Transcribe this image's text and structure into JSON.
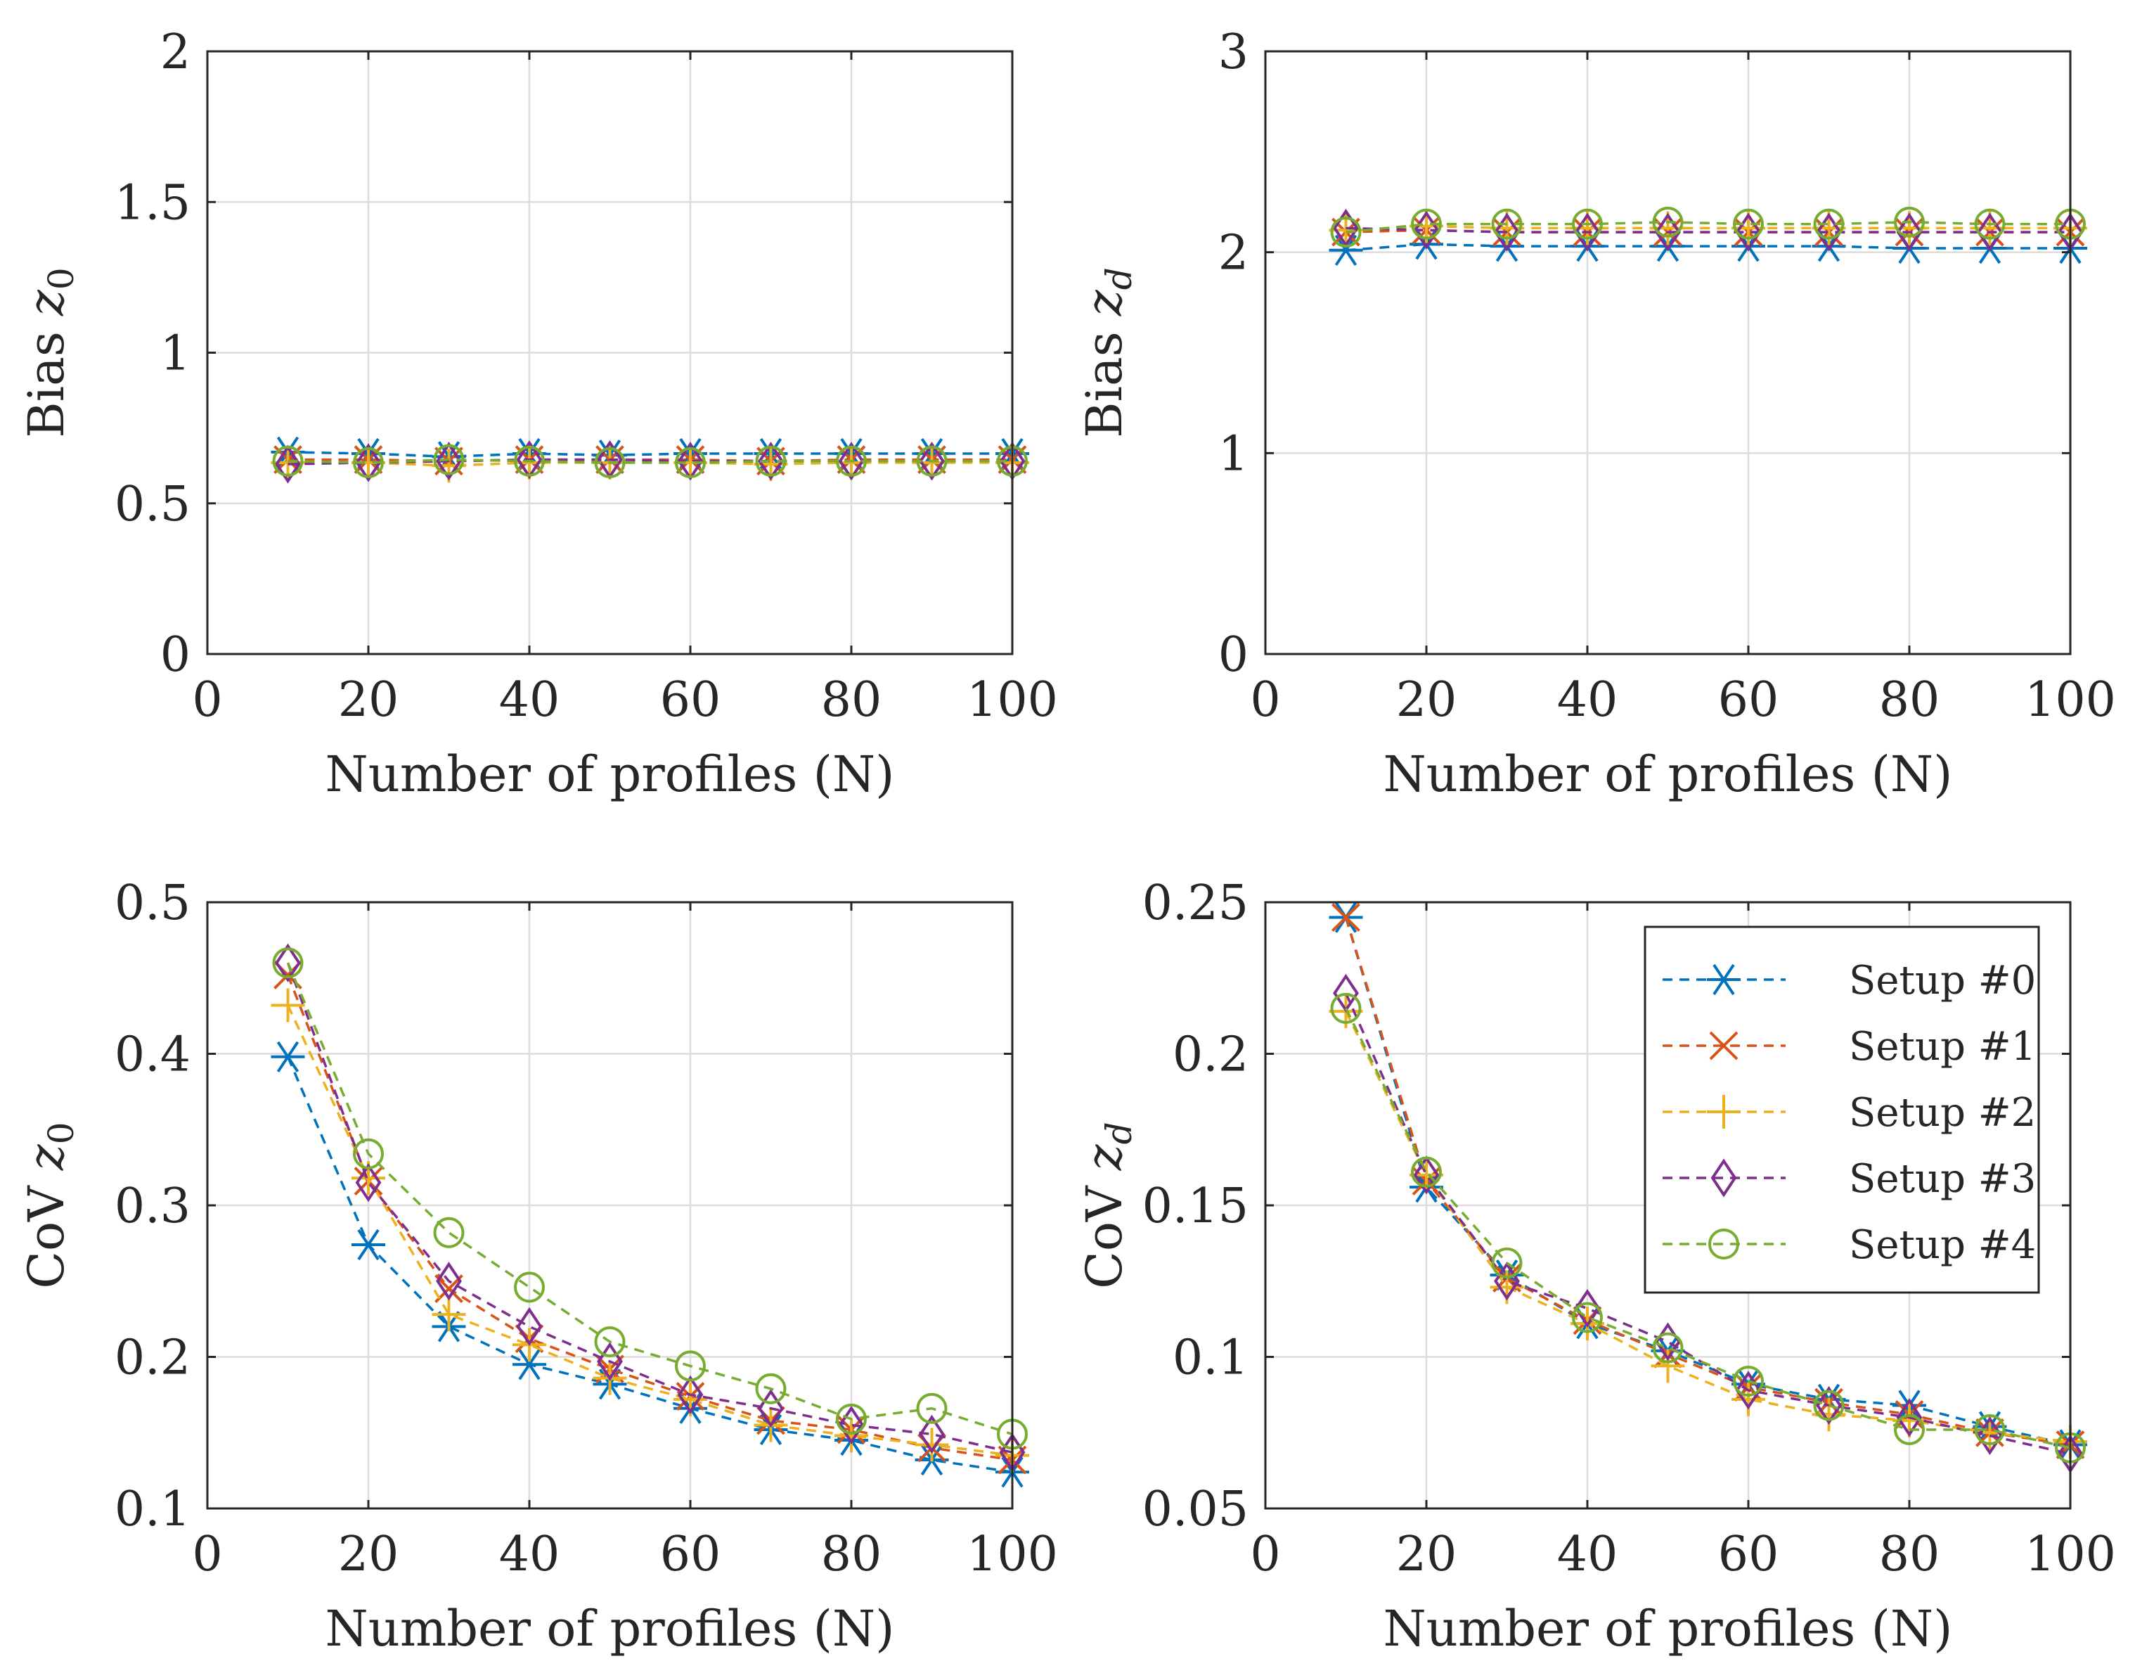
{
  "colors": {
    "series": [
      "#0072BD",
      "#D95319",
      "#EDB120",
      "#7E2F8E",
      "#77AC30"
    ],
    "grid": "#dcdcdc",
    "axis": "#262626"
  },
  "legend": {
    "entries": [
      "Setup #0",
      "Setup #1",
      "Setup #2",
      "Setup #3",
      "Setup #4"
    ],
    "markers": [
      "asterisk",
      "x",
      "plus",
      "diamond",
      "circle"
    ]
  },
  "chart_data": [
    {
      "id": "bias-z0",
      "type": "line",
      "xlabel": "Number of profiles (N)",
      "ylabel_main": "Bias ",
      "ylabel_var": "z",
      "ylabel_sub": "0",
      "xlim": [
        0,
        100
      ],
      "ylim": [
        0,
        2
      ],
      "xticks": [
        "0",
        "20",
        "40",
        "60",
        "80",
        "100"
      ],
      "yticks": [
        "0",
        "0.5",
        "1",
        "1.5",
        "2"
      ],
      "x": [
        10,
        20,
        30,
        40,
        50,
        60,
        70,
        80,
        90,
        100
      ],
      "series": [
        {
          "name": "Setup #0",
          "values": [
            0.67,
            0.665,
            0.655,
            0.665,
            0.66,
            0.665,
            0.665,
            0.665,
            0.665,
            0.665
          ]
        },
        {
          "name": "Setup #1",
          "values": [
            0.645,
            0.645,
            0.64,
            0.645,
            0.645,
            0.645,
            0.64,
            0.645,
            0.645,
            0.645
          ]
        },
        {
          "name": "Setup #2",
          "values": [
            0.635,
            0.635,
            0.625,
            0.635,
            0.635,
            0.635,
            0.63,
            0.635,
            0.635,
            0.635
          ]
        },
        {
          "name": "Setup #3",
          "values": [
            0.63,
            0.635,
            0.64,
            0.645,
            0.645,
            0.64,
            0.64,
            0.64,
            0.64,
            0.64
          ]
        },
        {
          "name": "Setup #4",
          "values": [
            0.64,
            0.635,
            0.645,
            0.64,
            0.635,
            0.635,
            0.64,
            0.64,
            0.64,
            0.64
          ]
        }
      ]
    },
    {
      "id": "bias-zd",
      "type": "line",
      "xlabel": "Number of profiles (N)",
      "ylabel_main": "Bias ",
      "ylabel_var": "z",
      "ylabel_sub": "d",
      "xlim": [
        0,
        100
      ],
      "ylim": [
        0,
        3
      ],
      "xticks": [
        "0",
        "20",
        "40",
        "60",
        "80",
        "100"
      ],
      "yticks": [
        "0",
        "1",
        "2",
        "3"
      ],
      "x": [
        10,
        20,
        30,
        40,
        50,
        60,
        70,
        80,
        90,
        100
      ],
      "series": [
        {
          "name": "Setup #0",
          "values": [
            2.01,
            2.04,
            2.03,
            2.03,
            2.03,
            2.03,
            2.03,
            2.02,
            2.02,
            2.02
          ]
        },
        {
          "name": "Setup #1",
          "values": [
            2.1,
            2.11,
            2.1,
            2.1,
            2.1,
            2.1,
            2.1,
            2.1,
            2.1,
            2.1
          ]
        },
        {
          "name": "Setup #2",
          "values": [
            2.11,
            2.13,
            2.12,
            2.12,
            2.12,
            2.12,
            2.12,
            2.12,
            2.12,
            2.12
          ]
        },
        {
          "name": "Setup #3",
          "values": [
            2.12,
            2.11,
            2.1,
            2.1,
            2.1,
            2.1,
            2.1,
            2.1,
            2.1,
            2.1
          ]
        },
        {
          "name": "Setup #4",
          "values": [
            2.1,
            2.14,
            2.14,
            2.14,
            2.15,
            2.14,
            2.14,
            2.15,
            2.14,
            2.14
          ]
        }
      ]
    },
    {
      "id": "cov-z0",
      "type": "line",
      "xlabel": "Number of profiles (N)",
      "ylabel_main": "CoV ",
      "ylabel_var": "z",
      "ylabel_sub": "0",
      "xlim": [
        0,
        100
      ],
      "ylim": [
        0.1,
        0.5
      ],
      "xticks": [
        "0",
        "20",
        "40",
        "60",
        "80",
        "100"
      ],
      "yticks": [
        "0.1",
        "0.2",
        "0.3",
        "0.4",
        "0.5"
      ],
      "x": [
        10,
        20,
        30,
        40,
        50,
        60,
        70,
        80,
        90,
        100
      ],
      "series": [
        {
          "name": "Setup #0",
          "values": [
            0.398,
            0.274,
            0.22,
            0.195,
            0.182,
            0.166,
            0.152,
            0.145,
            0.132,
            0.124
          ]
        },
        {
          "name": "Setup #1",
          "values": [
            0.452,
            0.316,
            0.245,
            0.212,
            0.192,
            0.174,
            0.158,
            0.152,
            0.14,
            0.132
          ]
        },
        {
          "name": "Setup #2",
          "values": [
            0.432,
            0.318,
            0.228,
            0.208,
            0.186,
            0.172,
            0.155,
            0.148,
            0.142,
            0.135
          ]
        },
        {
          "name": "Setup #3",
          "values": [
            0.46,
            0.315,
            0.25,
            0.22,
            0.197,
            0.175,
            0.166,
            0.155,
            0.149,
            0.137
          ]
        },
        {
          "name": "Setup #4",
          "values": [
            0.46,
            0.334,
            0.282,
            0.246,
            0.21,
            0.194,
            0.179,
            0.159,
            0.166,
            0.149
          ]
        }
      ]
    },
    {
      "id": "cov-zd",
      "type": "line",
      "xlabel": "Number of profiles (N)",
      "ylabel_main": "CoV ",
      "ylabel_var": "z",
      "ylabel_sub": "d",
      "xlim": [
        0,
        100
      ],
      "ylim": [
        0.05,
        0.25
      ],
      "xticks": [
        "0",
        "20",
        "40",
        "60",
        "80",
        "100"
      ],
      "yticks": [
        "0.05",
        "0.1",
        "0.15",
        "0.2",
        "0.25"
      ],
      "x": [
        10,
        20,
        30,
        40,
        50,
        60,
        70,
        80,
        90,
        100
      ],
      "series": [
        {
          "name": "Setup #0",
          "values": [
            0.245,
            0.156,
            0.127,
            0.111,
            0.102,
            0.091,
            0.086,
            0.084,
            0.077,
            0.071
          ]
        },
        {
          "name": "Setup #1",
          "values": [
            0.245,
            0.158,
            0.126,
            0.112,
            0.101,
            0.09,
            0.085,
            0.081,
            0.075,
            0.071
          ]
        },
        {
          "name": "Setup #2",
          "values": [
            0.214,
            0.16,
            0.123,
            0.111,
            0.097,
            0.086,
            0.081,
            0.079,
            0.075,
            0.072
          ]
        },
        {
          "name": "Setup #3",
          "values": [
            0.22,
            0.16,
            0.125,
            0.116,
            0.105,
            0.089,
            0.084,
            0.08,
            0.074,
            0.068
          ]
        },
        {
          "name": "Setup #4",
          "values": [
            0.215,
            0.161,
            0.131,
            0.113,
            0.103,
            0.092,
            0.084,
            0.076,
            0.076,
            0.07
          ]
        }
      ],
      "legend": "top-right"
    }
  ]
}
